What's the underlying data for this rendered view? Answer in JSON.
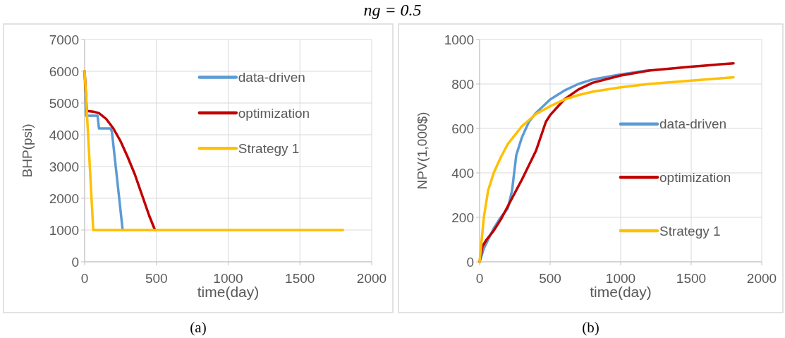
{
  "chart_data": [
    {
      "type": "line",
      "title": "ng = 0.5",
      "xlabel": "time(day)",
      "ylabel": "BHP(psi)",
      "annotations": [
        "(a)"
      ],
      "xlim": [
        0,
        2000
      ],
      "ylim": [
        0,
        7000
      ],
      "xticks": [
        0,
        500,
        1000,
        1500,
        2000
      ],
      "yticks": [
        0,
        1000,
        2000,
        3000,
        4000,
        5000,
        6000,
        7000
      ],
      "grid": true,
      "legend": "top right",
      "line_style": "solid",
      "marker": "none",
      "series": [
        {
          "name": "data-driven",
          "color": "#5b9bd5",
          "x": [
            0,
            10,
            90,
            100,
            180,
            190,
            265
          ],
          "values": [
            6000,
            4600,
            4600,
            4200,
            4200,
            4100,
            1000
          ]
        },
        {
          "name": "optimization",
          "color": "#c00000",
          "x": [
            0,
            15,
            60,
            100,
            150,
            200,
            250,
            300,
            350,
            400,
            450,
            490
          ],
          "values": [
            6000,
            4750,
            4730,
            4680,
            4500,
            4200,
            3800,
            3300,
            2750,
            2100,
            1450,
            1000
          ]
        },
        {
          "name": "Strategy 1",
          "color": "#ffc000",
          "x": [
            0,
            60,
            1800
          ],
          "values": [
            6000,
            1000,
            1000
          ]
        }
      ]
    },
    {
      "type": "line",
      "xlabel": "time(day)",
      "ylabel": "NPV(1,000$)",
      "annotations": [
        "(b)"
      ],
      "xlim": [
        0,
        2000
      ],
      "ylim": [
        0,
        1000
      ],
      "xticks": [
        0,
        500,
        1000,
        1500,
        2000
      ],
      "yticks": [
        0,
        200,
        400,
        600,
        800,
        1000
      ],
      "grid": true,
      "legend": "right",
      "line_style": "solid",
      "marker": "none",
      "series": [
        {
          "name": "data-driven",
          "color": "#5b9bd5",
          "x": [
            0,
            30,
            100,
            150,
            200,
            230,
            260,
            300,
            350,
            400,
            500,
            600,
            700,
            800,
            1000,
            1200
          ],
          "values": [
            0,
            60,
            150,
            200,
            240,
            320,
            480,
            560,
            630,
            670,
            730,
            770,
            800,
            820,
            843,
            862
          ]
        },
        {
          "name": "optimization",
          "color": "#c00000",
          "x": [
            0,
            20,
            50,
            100,
            150,
            200,
            300,
            400,
            470,
            500,
            600,
            700,
            800,
            1000,
            1200,
            1500,
            1800
          ],
          "values": [
            0,
            70,
            100,
            140,
            190,
            250,
            370,
            500,
            630,
            660,
            730,
            775,
            805,
            838,
            860,
            878,
            893
          ]
        },
        {
          "name": "Strategy 1",
          "color": "#ffc000",
          "x": [
            0,
            30,
            60,
            100,
            150,
            200,
            300,
            400,
            500,
            600,
            700,
            800,
            1000,
            1200,
            1500,
            1800
          ],
          "values": [
            0,
            200,
            320,
            400,
            470,
            530,
            610,
            665,
            700,
            730,
            750,
            765,
            785,
            800,
            815,
            830
          ]
        }
      ]
    }
  ]
}
